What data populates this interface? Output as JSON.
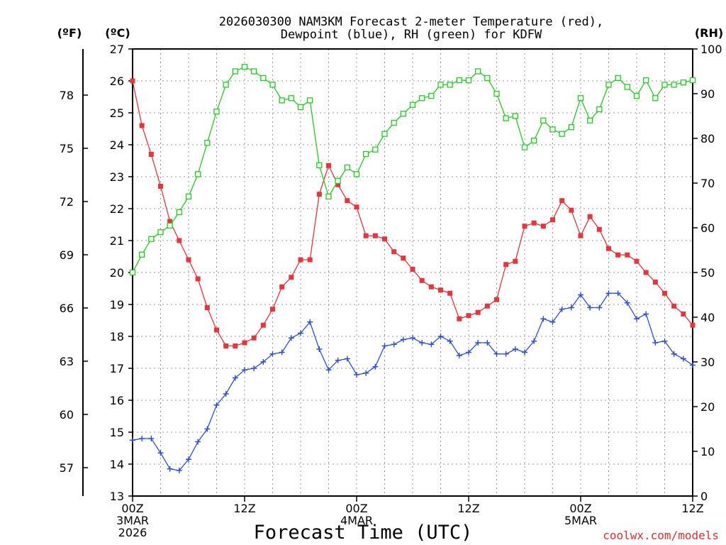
{
  "chart_data": {
    "type": "line",
    "title_line1": "2026030300 NAM3KM Forecast 2-meter Temperature (red),",
    "title_line2": "Dewpoint (blue), RH (green) for KDFW",
    "xlabel": "Forecast Time (UTC)",
    "credit": "coolwx.com/models",
    "unit_f": "(ºF)",
    "unit_c": "(ºC)",
    "unit_rh": "(RH)",
    "colors": {
      "temperature": "#e8343a",
      "dewpoint": "#2e4fd8",
      "rh": "#22cc22",
      "credit": "#e0302e"
    },
    "x_range_hours": [
      0,
      60
    ],
    "x_ticks": [
      {
        "hour": 0,
        "lines": [
          "00Z",
          "3MAR",
          "2026"
        ]
      },
      {
        "hour": 12,
        "lines": [
          "12Z"
        ]
      },
      {
        "hour": 24,
        "lines": [
          "00Z",
          "4MAR"
        ]
      },
      {
        "hour": 36,
        "lines": [
          "12Z"
        ]
      },
      {
        "hour": 48,
        "lines": [
          "00Z",
          "5MAR"
        ]
      },
      {
        "hour": 60,
        "lines": [
          "12Z"
        ]
      }
    ],
    "y_celsius_range": [
      13,
      27
    ],
    "y_celsius_ticks": [
      13,
      14,
      15,
      16,
      17,
      18,
      19,
      20,
      21,
      22,
      23,
      24,
      25,
      26,
      27
    ],
    "y_fahrenheit_ticks": [
      57,
      60,
      63,
      66,
      69,
      72,
      75,
      78
    ],
    "y_rh_range": [
      0,
      100
    ],
    "y_rh_ticks": [
      0,
      10,
      20,
      30,
      40,
      50,
      60,
      70,
      80,
      90,
      100
    ],
    "series": [
      {
        "name": "Temperature (°C)",
        "axis": "celsius",
        "marker": "filled-square",
        "values": [
          26.0,
          24.6,
          23.7,
          22.7,
          21.6,
          21.0,
          20.4,
          19.8,
          18.9,
          18.2,
          17.7,
          17.7,
          17.8,
          17.95,
          18.35,
          18.85,
          19.55,
          19.85,
          20.4,
          20.4,
          22.45,
          23.35,
          22.75,
          22.25,
          22.05,
          21.15,
          21.15,
          21.05,
          20.65,
          20.45,
          20.1,
          19.75,
          19.55,
          19.45,
          19.35,
          18.55,
          18.65,
          18.75,
          18.95,
          19.15,
          20.25,
          20.35,
          21.45,
          21.55,
          21.45,
          21.65,
          22.25,
          21.95,
          21.15,
          21.75,
          21.35,
          20.75,
          20.55,
          20.55,
          20.35,
          20.0,
          19.7,
          19.35,
          18.95,
          18.7,
          18.35
        ]
      },
      {
        "name": "Dewpoint (°C)",
        "axis": "celsius",
        "marker": "plus",
        "values": [
          14.75,
          14.8,
          14.8,
          14.35,
          13.85,
          13.8,
          14.15,
          14.7,
          15.1,
          15.85,
          16.2,
          16.7,
          16.95,
          17.0,
          17.2,
          17.45,
          17.5,
          17.95,
          18.1,
          18.45,
          17.6,
          16.95,
          17.25,
          17.3,
          16.8,
          16.85,
          17.05,
          17.7,
          17.75,
          17.9,
          17.95,
          17.8,
          17.75,
          18.0,
          17.85,
          17.4,
          17.5,
          17.8,
          17.8,
          17.45,
          17.45,
          17.6,
          17.5,
          17.85,
          18.55,
          18.45,
          18.85,
          18.9,
          19.3,
          18.9,
          18.9,
          19.35,
          19.35,
          19.05,
          18.55,
          18.7,
          17.8,
          17.85,
          17.45,
          17.3,
          17.1
        ]
      },
      {
        "name": "RH (%)",
        "axis": "rh",
        "marker": "open-square",
        "values": [
          50,
          54,
          57.5,
          59,
          60.5,
          63.5,
          67,
          72,
          79,
          86,
          92,
          95,
          96,
          95,
          93.5,
          92,
          88.5,
          89,
          87,
          88.5,
          74,
          67,
          70.5,
          73.5,
          72,
          76.5,
          77.5,
          81,
          83.5,
          85.5,
          87.5,
          89,
          89.5,
          92,
          92,
          93,
          93,
          95,
          93.5,
          90,
          84.5,
          85,
          78,
          79.5,
          84,
          82,
          81,
          82.5,
          89,
          84,
          86.5,
          92,
          93.5,
          91.5,
          89.5,
          93,
          89,
          92,
          92,
          92.5,
          93
        ]
      }
    ]
  }
}
